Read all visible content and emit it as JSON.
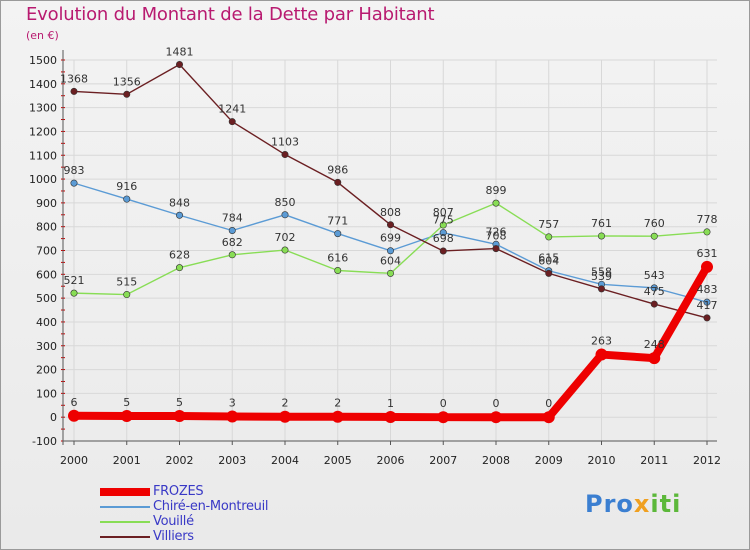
{
  "title": "Evolution du Montant de la Dette par Habitant",
  "unit": "(en €)",
  "logo": [
    "Pro",
    "x",
    "iti"
  ],
  "chart_data": {
    "type": "line",
    "title": "Evolution du Montant de la Dette par Habitant",
    "ylabel": "(en €)",
    "xlabel": "",
    "x": [
      "2000",
      "2001",
      "2002",
      "2003",
      "2004",
      "2005",
      "2006",
      "2007",
      "2008",
      "2009",
      "2010",
      "2011",
      "2012"
    ],
    "y_ticks": [
      "-100",
      "0",
      "100",
      "200",
      "300",
      "400",
      "500",
      "600",
      "700",
      "800",
      "900",
      "1000",
      "1100",
      "1200",
      "1300",
      "1400",
      "1500"
    ],
    "ylim": [
      -100,
      1500
    ],
    "grid": true,
    "legend_position": "bottom-left",
    "series": [
      {
        "name": "FROZES",
        "color": "#ee0000",
        "values": [
          6,
          5,
          5,
          3,
          2,
          2,
          1,
          0,
          0,
          0,
          263,
          248,
          631
        ],
        "labels": [
          "6",
          "5",
          "5",
          "3",
          "2",
          "2",
          "1",
          "0",
          "0",
          "0",
          "263",
          "248",
          "631"
        ]
      },
      {
        "name": "Chiré-en-Montreuil",
        "color": "#5b9bd5",
        "values": [
          983,
          916,
          848,
          784,
          850,
          771,
          699,
          775,
          726,
          615,
          558,
          543,
          483
        ],
        "labels": [
          "983",
          "916",
          "848",
          "784",
          "850",
          "771",
          "699",
          "775",
          "726",
          "615",
          "558",
          "543",
          "483"
        ]
      },
      {
        "name": "Vouillé",
        "color": "#88dd55",
        "values": [
          521,
          515,
          628,
          682,
          702,
          616,
          604,
          807,
          899,
          757,
          761,
          760,
          778
        ],
        "labels": [
          "521",
          "515",
          "628",
          "682",
          "702",
          "616",
          "604",
          "807",
          "899",
          "757",
          "761",
          "760",
          "778"
        ]
      },
      {
        "name": "Villiers",
        "color": "#6b1f22",
        "values": [
          1368,
          1356,
          1481,
          1241,
          1103,
          986,
          808,
          698,
          708,
          604,
          539,
          475,
          417
        ],
        "labels": [
          "1368",
          "1356",
          "1481",
          "1241",
          "1103",
          "986",
          "808",
          "698",
          "708",
          "604",
          "539",
          "475",
          "417"
        ]
      }
    ]
  }
}
